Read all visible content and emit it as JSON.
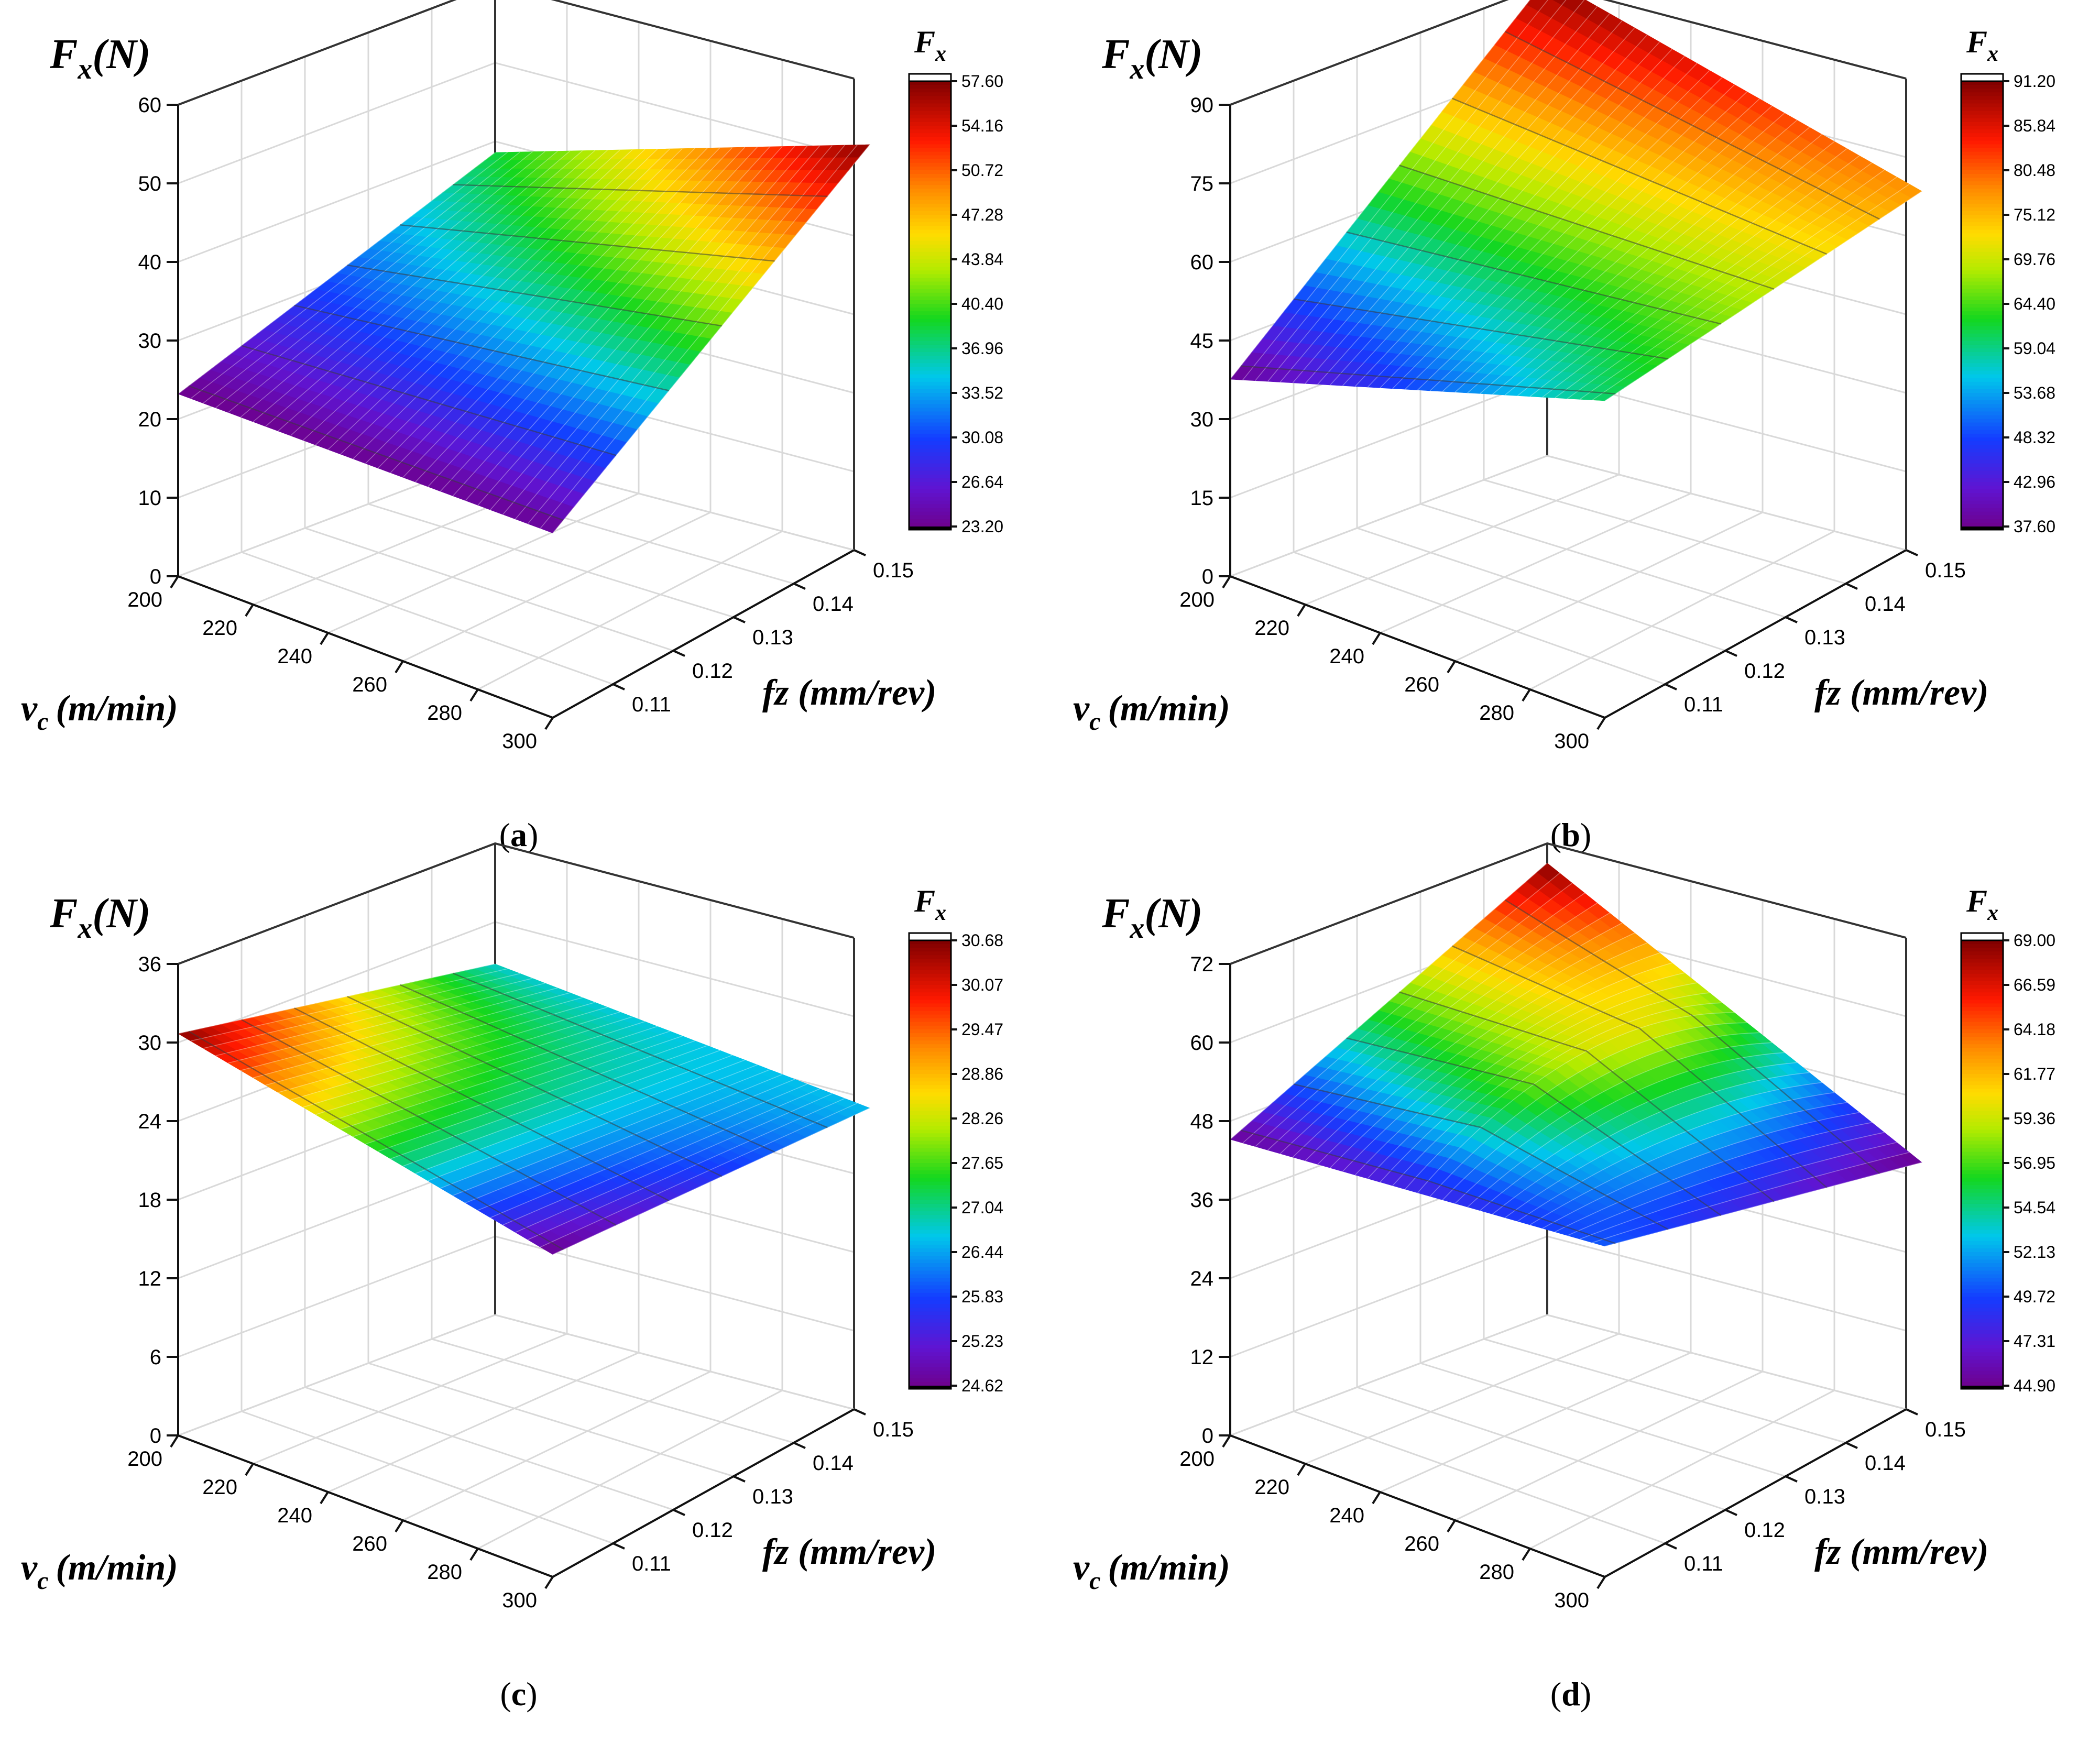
{
  "chart_data": [
    {
      "type": "surface3d",
      "caption": "a",
      "zlabel": "F",
      "zlabel_sub": "x",
      "zlabel_unit": "(N)",
      "xlabel": "v",
      "xlabel_sub": "c",
      "xlabel_unit": "(m/min)",
      "ylabel": "fz (mm/rev)",
      "colorbar_title": "F",
      "colorbar_sub": "x",
      "x_range": [
        200,
        300
      ],
      "y_range": [
        0.1,
        0.15
      ],
      "zlim": [
        0,
        60
      ],
      "x_ticks": [
        "200",
        "220",
        "240",
        "260",
        "280",
        "300"
      ],
      "y_ticks": [
        "0.11",
        "0.12",
        "0.13",
        "0.14",
        "0.15"
      ],
      "z_ticks": [
        "0",
        "10",
        "20",
        "30",
        "40",
        "50",
        "60"
      ],
      "colorbar_labels": [
        "57.60",
        "54.16",
        "50.72",
        "47.28",
        "43.84",
        "40.40",
        "36.96",
        "33.52",
        "30.08",
        "26.64",
        "23.20"
      ],
      "corners": {
        "v200_f010": 23.2,
        "v300_f010": 23.5,
        "v200_f015": 38.6,
        "v300_f015": 57.6
      },
      "curvature": 0
    },
    {
      "type": "surface3d",
      "caption": "b",
      "zlabel": "F",
      "zlabel_sub": "x",
      "zlabel_unit": "(N)",
      "xlabel": "v",
      "xlabel_sub": "c",
      "xlabel_unit": "(m/min)",
      "ylabel": "fz (mm/rev)",
      "colorbar_title": "F",
      "colorbar_sub": "x",
      "x_range": [
        200,
        300
      ],
      "y_range": [
        0.1,
        0.15
      ],
      "zlim": [
        0,
        90
      ],
      "x_ticks": [
        "200",
        "220",
        "240",
        "260",
        "280",
        "300"
      ],
      "y_ticks": [
        "0.11",
        "0.12",
        "0.13",
        "0.14",
        "0.15"
      ],
      "z_ticks": [
        "0",
        "15",
        "30",
        "45",
        "60",
        "75",
        "90"
      ],
      "colorbar_labels": [
        "91.20",
        "85.84",
        "80.48",
        "75.12",
        "69.76",
        "64.40",
        "59.04",
        "53.68",
        "48.32",
        "42.96",
        "37.60"
      ],
      "corners": {
        "v200_f010": 37.6,
        "v300_f010": 60.5,
        "v200_f015": 91.2,
        "v300_f015": 77.5
      },
      "curvature": 0
    },
    {
      "type": "surface3d",
      "caption": "c",
      "zlabel": "F",
      "zlabel_sub": "x",
      "zlabel_unit": "(N)",
      "xlabel": "v",
      "xlabel_sub": "c",
      "xlabel_unit": "(m/min)",
      "ylabel": "fz (mm/rev)",
      "colorbar_title": "F",
      "colorbar_sub": "x",
      "x_range": [
        200,
        300
      ],
      "y_range": [
        0.1,
        0.15
      ],
      "zlim": [
        0,
        36
      ],
      "x_ticks": [
        "200",
        "220",
        "240",
        "260",
        "280",
        "300"
      ],
      "y_ticks": [
        "0.11",
        "0.12",
        "0.13",
        "0.14",
        "0.15"
      ],
      "z_ticks": [
        "0",
        "6",
        "12",
        "18",
        "24",
        "30",
        "36"
      ],
      "colorbar_labels": [
        "30.68",
        "30.07",
        "29.47",
        "28.86",
        "28.26",
        "27.65",
        "27.04",
        "26.44",
        "25.83",
        "25.23",
        "24.62"
      ],
      "corners": {
        "v200_f010": 30.68,
        "v300_f010": 24.62,
        "v200_f015": 26.8,
        "v300_f015": 26.6
      },
      "curvature": 0
    },
    {
      "type": "surface3d",
      "caption": "d",
      "zlabel": "F",
      "zlabel_sub": "x",
      "zlabel_unit": "(N)",
      "xlabel": "v",
      "xlabel_sub": "c",
      "xlabel_unit": "(m/min)",
      "ylabel": "fz (mm/rev)",
      "colorbar_title": "F",
      "colorbar_sub": "x",
      "x_range": [
        200,
        300
      ],
      "y_range": [
        0.1,
        0.15
      ],
      "zlim": [
        0,
        72
      ],
      "x_ticks": [
        "200",
        "220",
        "240",
        "260",
        "280",
        "300"
      ],
      "y_ticks": [
        "0.11",
        "0.12",
        "0.13",
        "0.14",
        "0.15"
      ],
      "z_ticks": [
        "0",
        "12",
        "24",
        "36",
        "48",
        "60",
        "72"
      ],
      "colorbar_labels": [
        "69.00",
        "66.59",
        "64.18",
        "61.77",
        "59.36",
        "56.95",
        "54.54",
        "52.13",
        "49.72",
        "47.31",
        "44.90"
      ],
      "corners": {
        "v200_f010": 45.2,
        "v300_f010": 50.5,
        "v200_f015": 69.0,
        "v300_f015": 44.9
      },
      "curvature": 14
    }
  ]
}
